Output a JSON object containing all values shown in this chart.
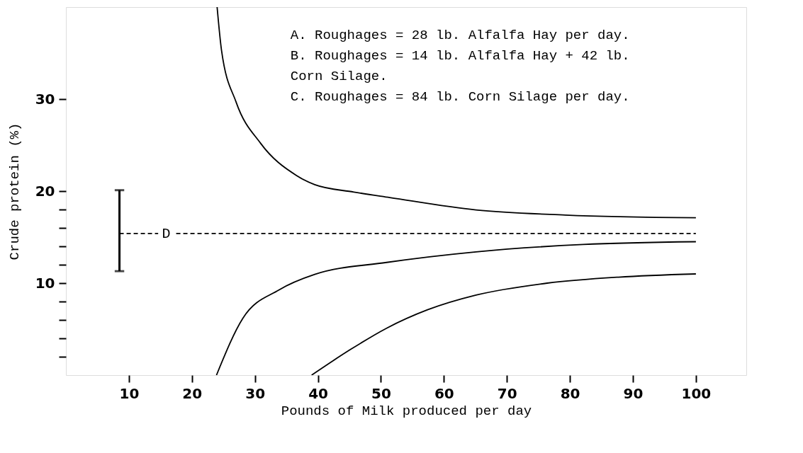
{
  "chart_data": {
    "type": "line",
    "xlabel": "Pounds of Milk produced per day",
    "ylabel": "Crude protein (%)",
    "xlim": [
      0,
      108
    ],
    "ylim": [
      0,
      40
    ],
    "xticks": [
      10,
      20,
      30,
      40,
      50,
      60,
      70,
      80,
      90,
      100
    ],
    "yticks": [
      {
        "value": 2,
        "label": null
      },
      {
        "value": 4,
        "label": null
      },
      {
        "value": 6,
        "label": null
      },
      {
        "value": 8,
        "label": null
      },
      10,
      {
        "value": 12,
        "label": null
      },
      {
        "value": 14,
        "label": null
      },
      {
        "value": 16,
        "label": null
      },
      {
        "value": 18,
        "label": null
      },
      20,
      30
    ],
    "grid": false,
    "marker": "none",
    "series": [
      {
        "color": "#000000",
        "x": [
          24.0,
          24.7,
          27.0,
          30.9,
          36.6,
          39.5,
          45.7,
          51.4,
          65.1,
          79.3,
          100
        ],
        "values": [
          40,
          35.3,
          29.7,
          25.2,
          21.7,
          20.7,
          19.9,
          19.3,
          17.95,
          17.4,
          17.1
        ]
      },
      {
        "color": "#000000",
        "x": [
          23.9,
          28.1,
          33.8,
          39.5,
          50.9,
          65.1,
          82.1,
          100
        ],
        "values": [
          0,
          6.2,
          9.25,
          10.95,
          12.25,
          13.4,
          14.2,
          14.5
        ]
      },
      {
        "color": "#000000",
        "x": [
          39.0,
          45.2,
          50.9,
          57.4,
          65.1,
          76.4,
          87.7,
          100
        ],
        "values": [
          0,
          2.8,
          5.1,
          7.1,
          8.7,
          10.0,
          10.65,
          11.0
        ]
      },
      {
        "name": "D",
        "color": "#000000",
        "line_style": "dashed",
        "x": [
          8.5,
          100
        ],
        "values": [
          15.4,
          15.4
        ],
        "errors": [
          [
            11.3,
            20.1
          ],
          null
        ]
      }
    ],
    "annotations": [
      "A. Roughages = 28 lb. Alfalfa Hay per day.",
      "B. Roughages = 14 lb. Alfalfa Hay + 42 lb.\nCorn Silage.",
      "C. Roughages = 84 lb. Corn Silage per day."
    ]
  }
}
